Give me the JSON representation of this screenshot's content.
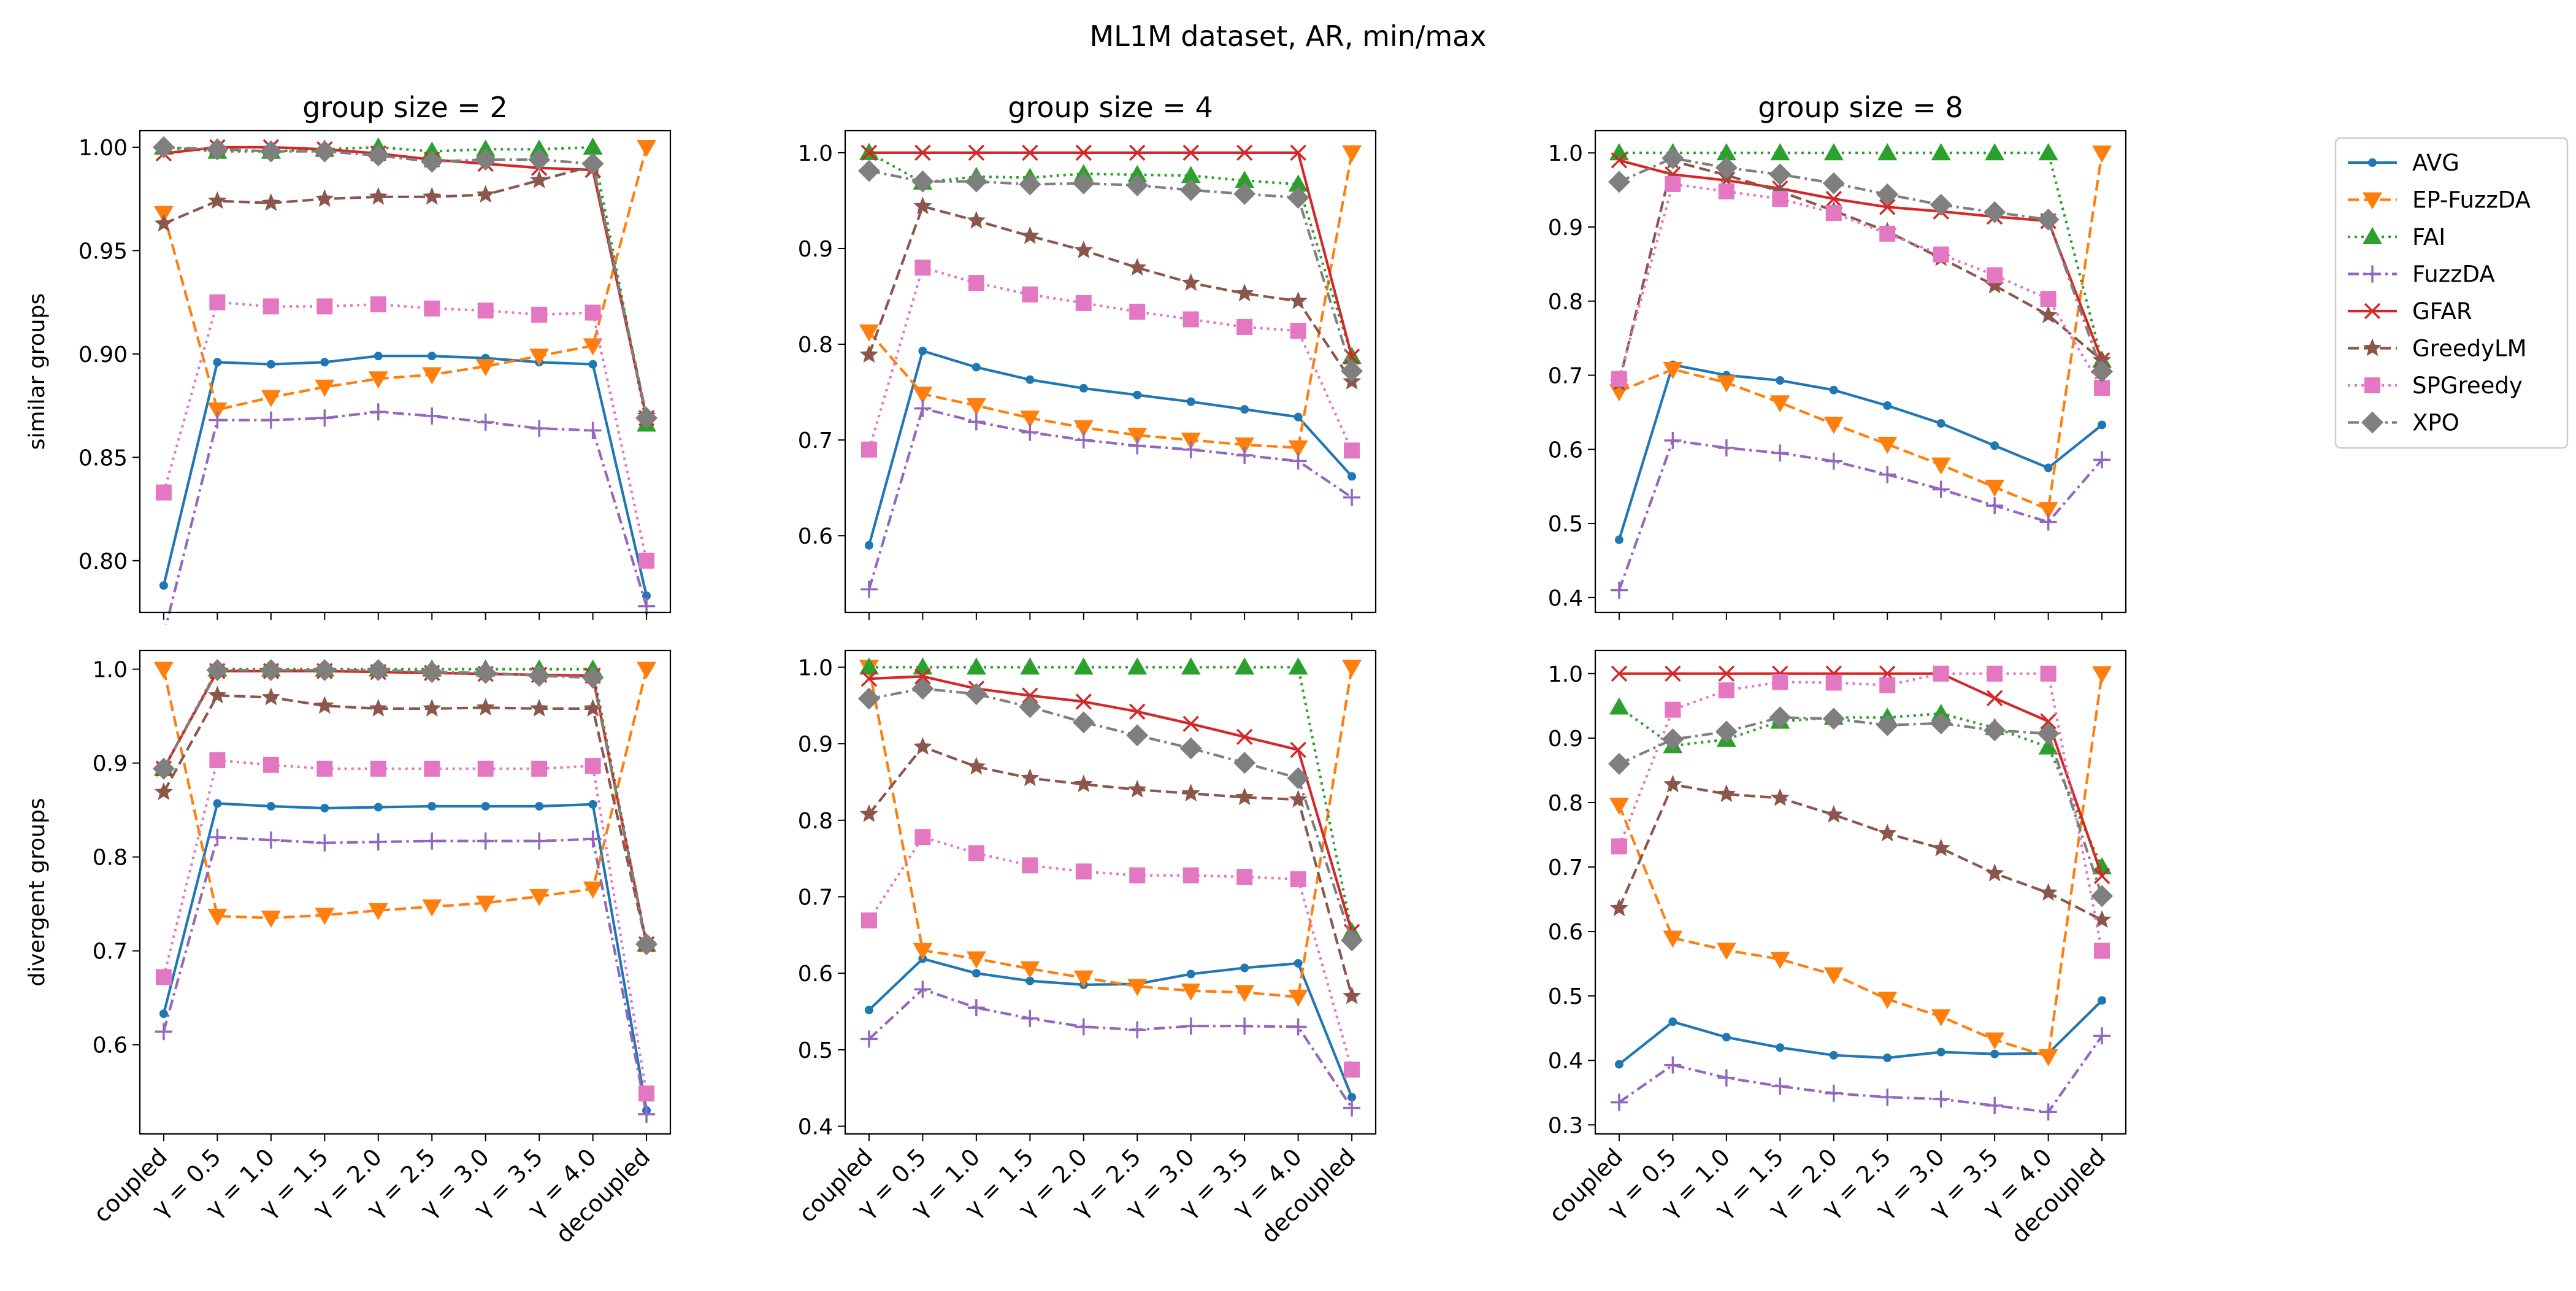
{
  "figure": {
    "title": "ML1M dataset, AR, min/max"
  },
  "chart_data": {
    "type": "line",
    "categories": [
      "coupled",
      "γ = 0.5",
      "γ = 1.0",
      "γ = 1.5",
      "γ = 2.0",
      "γ = 2.5",
      "γ = 3.0",
      "γ = 3.5",
      "γ = 4.0",
      "decoupled"
    ],
    "columns": [
      "group size = 2",
      "group size = 4",
      "group size = 8"
    ],
    "rows": [
      "similar groups",
      "divergent groups"
    ],
    "legend": {
      "placement": "right, outside top-right panel",
      "entries": [
        {
          "name": "AVG",
          "color": "#1f77b4",
          "linestyle": "solid",
          "marker": "dot"
        },
        {
          "name": "EP-FuzzDA",
          "color": "#ff7f0e",
          "linestyle": "dashed",
          "marker": "triangle-down"
        },
        {
          "name": "FAI",
          "color": "#2ca02c",
          "linestyle": "dotted",
          "marker": "triangle-up"
        },
        {
          "name": "FuzzDA",
          "color": "#9467bd",
          "linestyle": "dashdot",
          "marker": "plus"
        },
        {
          "name": "GFAR",
          "color": "#d62728",
          "linestyle": "solid",
          "marker": "x"
        },
        {
          "name": "GreedyLM",
          "color": "#8c564b",
          "linestyle": "dashed",
          "marker": "star"
        },
        {
          "name": "SPGreedy",
          "color": "#e377c2",
          "linestyle": "dotted",
          "marker": "square"
        },
        {
          "name": "XPO",
          "color": "#7f7f7f",
          "linestyle": "dashdot",
          "marker": "diamond"
        }
      ]
    },
    "grid": false,
    "panels": [
      {
        "row": 0,
        "col": 0,
        "ylim": [
          0.775,
          1.008
        ],
        "yticks": [
          0.8,
          0.85,
          0.9,
          0.95,
          1.0
        ],
        "ytick_labels": [
          "0.80",
          "0.85",
          "0.90",
          "0.95",
          "1.00"
        ],
        "series": [
          {
            "name": "AVG",
            "values": [
              0.788,
              0.896,
              0.895,
              0.896,
              0.899,
              0.899,
              0.898,
              0.896,
              0.895,
              0.783
            ]
          },
          {
            "name": "EP-FuzzDA",
            "values": [
              0.968,
              0.873,
              0.879,
              0.884,
              0.888,
              0.89,
              0.894,
              0.899,
              0.904,
              1.0
            ]
          },
          {
            "name": "FAI",
            "values": [
              1.0,
              0.998,
              0.998,
              0.999,
              1.0,
              0.998,
              0.999,
              0.999,
              1.0,
              0.866
            ]
          },
          {
            "name": "FuzzDA",
            "values": [
              0.764,
              0.868,
              0.868,
              0.869,
              0.872,
              0.87,
              0.867,
              0.864,
              0.863,
              0.778
            ]
          },
          {
            "name": "GFAR",
            "values": [
              0.997,
              1.0,
              1.0,
              0.999,
              0.997,
              0.994,
              0.992,
              0.99,
              0.989,
              0.869
            ]
          },
          {
            "name": "GreedyLM",
            "values": [
              0.963,
              0.974,
              0.973,
              0.975,
              0.976,
              0.976,
              0.977,
              0.984,
              0.991,
              0.87
            ]
          },
          {
            "name": "SPGreedy",
            "values": [
              0.833,
              0.925,
              0.923,
              0.923,
              0.924,
              0.922,
              0.921,
              0.919,
              0.92,
              0.8
            ]
          },
          {
            "name": "XPO",
            "values": [
              1.0,
              0.999,
              0.998,
              0.998,
              0.996,
              0.993,
              0.994,
              0.994,
              0.992,
              0.869
            ]
          }
        ]
      },
      {
        "row": 0,
        "col": 1,
        "ylim": [
          0.52,
          1.023
        ],
        "yticks": [
          0.6,
          0.7,
          0.8,
          0.9,
          1.0
        ],
        "ytick_labels": [
          "0.6",
          "0.7",
          "0.8",
          "0.9",
          "1.0"
        ],
        "series": [
          {
            "name": "AVG",
            "values": [
              0.59,
              0.793,
              0.776,
              0.763,
              0.754,
              0.747,
              0.74,
              0.732,
              0.724,
              0.662
            ]
          },
          {
            "name": "EP-FuzzDA",
            "values": [
              0.813,
              0.748,
              0.736,
              0.723,
              0.713,
              0.705,
              0.7,
              0.695,
              0.692,
              1.0
            ]
          },
          {
            "name": "FAI",
            "values": [
              1.0,
              0.969,
              0.975,
              0.974,
              0.978,
              0.977,
              0.976,
              0.971,
              0.967,
              0.787
            ]
          },
          {
            "name": "FuzzDA",
            "values": [
              0.544,
              0.733,
              0.719,
              0.708,
              0.7,
              0.694,
              0.69,
              0.684,
              0.678,
              0.64
            ]
          },
          {
            "name": "GFAR",
            "values": [
              1.0,
              1.0,
              1.0,
              1.0,
              1.0,
              1.0,
              1.0,
              1.0,
              1.0,
              0.787
            ]
          },
          {
            "name": "GreedyLM",
            "values": [
              0.789,
              0.944,
              0.929,
              0.913,
              0.898,
              0.88,
              0.864,
              0.853,
              0.845,
              0.761
            ]
          },
          {
            "name": "SPGreedy",
            "values": [
              0.69,
              0.88,
              0.864,
              0.852,
              0.843,
              0.834,
              0.826,
              0.818,
              0.814,
              0.689
            ]
          },
          {
            "name": "XPO",
            "values": [
              0.981,
              0.97,
              0.97,
              0.967,
              0.968,
              0.966,
              0.961,
              0.957,
              0.953,
              0.772
            ]
          }
        ]
      },
      {
        "row": 0,
        "col": 2,
        "ylim": [
          0.38,
          1.03
        ],
        "yticks": [
          0.4,
          0.5,
          0.6,
          0.7,
          0.8,
          0.9,
          1.0
        ],
        "ytick_labels": [
          "0.4",
          "0.5",
          "0.6",
          "0.7",
          "0.8",
          "0.9",
          "1.0"
        ],
        "series": [
          {
            "name": "AVG",
            "values": [
              0.478,
              0.714,
              0.7,
              0.693,
              0.68,
              0.659,
              0.635,
              0.605,
              0.575,
              0.633
            ]
          },
          {
            "name": "EP-FuzzDA",
            "values": [
              0.678,
              0.708,
              0.69,
              0.663,
              0.634,
              0.607,
              0.579,
              0.549,
              0.519,
              1.0
            ]
          },
          {
            "name": "FAI",
            "values": [
              1.0,
              1.0,
              1.0,
              1.0,
              1.0,
              1.0,
              1.0,
              1.0,
              1.0,
              0.72
            ]
          },
          {
            "name": "FuzzDA",
            "values": [
              0.41,
              0.612,
              0.602,
              0.595,
              0.584,
              0.566,
              0.546,
              0.524,
              0.502,
              0.586
            ]
          },
          {
            "name": "GFAR",
            "values": [
              0.99,
              0.971,
              0.963,
              0.952,
              0.938,
              0.927,
              0.921,
              0.914,
              0.908,
              0.72
            ]
          },
          {
            "name": "GreedyLM",
            "values": [
              0.69,
              0.989,
              0.97,
              0.948,
              0.922,
              0.894,
              0.858,
              0.821,
              0.781,
              0.72
            ]
          },
          {
            "name": "SPGreedy",
            "values": [
              0.695,
              0.958,
              0.948,
              0.938,
              0.919,
              0.891,
              0.863,
              0.835,
              0.803,
              0.683
            ]
          },
          {
            "name": "XPO",
            "values": [
              0.961,
              0.993,
              0.98,
              0.971,
              0.959,
              0.944,
              0.93,
              0.92,
              0.91,
              0.705
            ]
          }
        ]
      },
      {
        "row": 1,
        "col": 0,
        "ylim": [
          0.505,
          1.02
        ],
        "yticks": [
          0.6,
          0.7,
          0.8,
          0.9,
          1.0
        ],
        "ytick_labels": [
          "0.6",
          "0.7",
          "0.8",
          "0.9",
          "1.0"
        ],
        "series": [
          {
            "name": "AVG",
            "values": [
              0.633,
              0.857,
              0.854,
              0.852,
              0.853,
              0.854,
              0.854,
              0.854,
              0.856,
              0.53
            ]
          },
          {
            "name": "EP-FuzzDA",
            "values": [
              1.0,
              0.737,
              0.735,
              0.738,
              0.743,
              0.747,
              0.751,
              0.758,
              0.766,
              1.0
            ]
          },
          {
            "name": "FAI",
            "values": [
              0.894,
              1.0,
              1.0,
              1.0,
              1.0,
              1.0,
              1.0,
              1.0,
              1.0,
              0.707
            ]
          },
          {
            "name": "FuzzDA",
            "values": [
              0.614,
              0.821,
              0.818,
              0.815,
              0.816,
              0.817,
              0.817,
              0.817,
              0.819,
              0.526
            ]
          },
          {
            "name": "GFAR",
            "values": [
              0.894,
              0.998,
              0.998,
              0.998,
              0.997,
              0.996,
              0.995,
              0.994,
              0.993,
              0.707
            ]
          },
          {
            "name": "GreedyLM",
            "values": [
              0.869,
              0.972,
              0.97,
              0.961,
              0.958,
              0.958,
              0.959,
              0.958,
              0.958,
              0.707
            ]
          },
          {
            "name": "SPGreedy",
            "values": [
              0.672,
              0.903,
              0.898,
              0.894,
              0.894,
              0.894,
              0.894,
              0.894,
              0.897,
              0.548
            ]
          },
          {
            "name": "XPO",
            "values": [
              0.894,
              0.999,
              0.999,
              0.999,
              0.999,
              0.997,
              0.996,
              0.993,
              0.991,
              0.707
            ]
          }
        ]
      },
      {
        "row": 1,
        "col": 1,
        "ylim": [
          0.39,
          1.022
        ],
        "yticks": [
          0.4,
          0.5,
          0.6,
          0.7,
          0.8,
          0.9,
          1.0
        ],
        "ytick_labels": [
          "0.4",
          "0.5",
          "0.6",
          "0.7",
          "0.8",
          "0.9",
          "1.0"
        ],
        "series": [
          {
            "name": "AVG",
            "values": [
              0.552,
              0.619,
              0.6,
              0.59,
              0.585,
              0.586,
              0.599,
              0.607,
              0.613,
              0.438
            ]
          },
          {
            "name": "EP-FuzzDA",
            "values": [
              1.0,
              0.63,
              0.619,
              0.606,
              0.594,
              0.583,
              0.577,
              0.575,
              0.569,
              1.0
            ]
          },
          {
            "name": "FAI",
            "values": [
              1.0,
              1.0,
              1.0,
              1.0,
              1.0,
              1.0,
              1.0,
              1.0,
              1.0,
              0.654
            ]
          },
          {
            "name": "FuzzDA",
            "values": [
              0.514,
              0.579,
              0.555,
              0.541,
              0.53,
              0.526,
              0.531,
              0.531,
              0.53,
              0.424
            ]
          },
          {
            "name": "GFAR",
            "values": [
              0.985,
              0.988,
              0.972,
              0.963,
              0.955,
              0.942,
              0.926,
              0.909,
              0.892,
              0.654
            ]
          },
          {
            "name": "GreedyLM",
            "values": [
              0.808,
              0.896,
              0.87,
              0.855,
              0.847,
              0.84,
              0.835,
              0.83,
              0.827,
              0.57
            ]
          },
          {
            "name": "SPGreedy",
            "values": [
              0.669,
              0.778,
              0.757,
              0.741,
              0.733,
              0.728,
              0.728,
              0.726,
              0.723,
              0.474
            ]
          },
          {
            "name": "XPO",
            "values": [
              0.959,
              0.972,
              0.965,
              0.948,
              0.928,
              0.911,
              0.894,
              0.875,
              0.855,
              0.643
            ]
          }
        ]
      },
      {
        "row": 1,
        "col": 2,
        "ylim": [
          0.286,
          1.036
        ],
        "yticks": [
          0.3,
          0.4,
          0.5,
          0.6,
          0.7,
          0.8,
          0.9,
          1.0
        ],
        "ytick_labels": [
          "0.3",
          "0.4",
          "0.5",
          "0.6",
          "0.7",
          "0.8",
          "0.9",
          "1.0"
        ],
        "series": [
          {
            "name": "AVG",
            "values": [
              0.394,
              0.46,
              0.436,
              0.42,
              0.408,
              0.404,
              0.413,
              0.41,
              0.411,
              0.493
            ]
          },
          {
            "name": "EP-FuzzDA",
            "values": [
              0.796,
              0.59,
              0.571,
              0.557,
              0.533,
              0.495,
              0.468,
              0.432,
              0.406,
              1.0
            ]
          },
          {
            "name": "FAI",
            "values": [
              0.948,
              0.888,
              0.898,
              0.926,
              0.932,
              0.932,
              0.938,
              0.916,
              0.886,
              0.7
            ]
          },
          {
            "name": "FuzzDA",
            "values": [
              0.335,
              0.393,
              0.373,
              0.36,
              0.349,
              0.343,
              0.34,
              0.33,
              0.32,
              0.438
            ]
          },
          {
            "name": "GFAR",
            "values": [
              1.0,
              1.0,
              1.0,
              1.0,
              1.0,
              1.0,
              1.0,
              0.962,
              0.926,
              0.686
            ]
          },
          {
            "name": "GreedyLM",
            "values": [
              0.636,
              0.828,
              0.813,
              0.807,
              0.781,
              0.752,
              0.729,
              0.69,
              0.66,
              0.618
            ]
          },
          {
            "name": "SPGreedy",
            "values": [
              0.732,
              0.944,
              0.974,
              0.987,
              0.986,
              0.982,
              1.0,
              1.0,
              1.0,
              0.57
            ]
          },
          {
            "name": "XPO",
            "values": [
              0.86,
              0.898,
              0.91,
              0.932,
              0.93,
              0.92,
              0.923,
              0.912,
              0.907,
              0.655
            ]
          }
        ]
      }
    ]
  }
}
